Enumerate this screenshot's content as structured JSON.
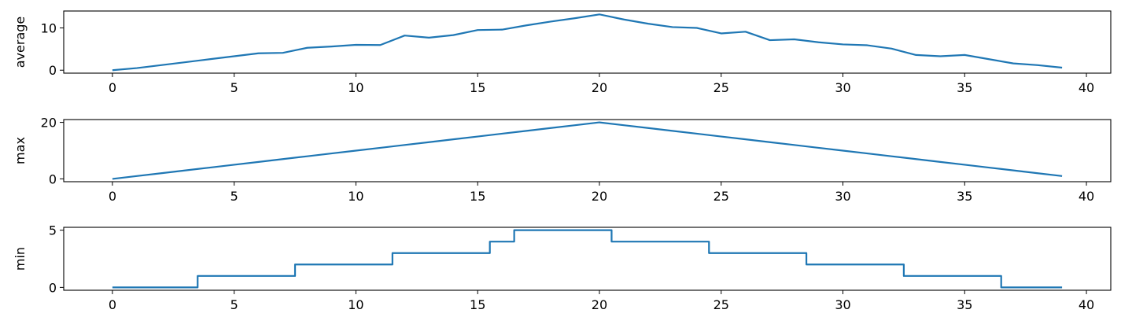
{
  "chart_data": [
    {
      "type": "line",
      "ylabel": "average",
      "xlim": [
        -2,
        41
      ],
      "ylim": [
        -0.7,
        14
      ],
      "xticks": [
        0,
        5,
        10,
        15,
        20,
        25,
        30,
        35,
        40
      ],
      "yticks": [
        0,
        10
      ],
      "color": "#1f77b4",
      "x": [
        0,
        1,
        2,
        3,
        4,
        5,
        6,
        7,
        8,
        9,
        10,
        11,
        12,
        13,
        14,
        15,
        16,
        17,
        18,
        19,
        20,
        21,
        22,
        23,
        24,
        25,
        26,
        27,
        28,
        29,
        30,
        31,
        32,
        33,
        34,
        35,
        36,
        37,
        38,
        39
      ],
      "y": [
        0,
        0.5,
        1.2,
        1.9,
        2.6,
        3.3,
        4.0,
        4.1,
        5.3,
        5.6,
        6.0,
        5.95,
        8.2,
        7.7,
        8.3,
        9.5,
        9.6,
        10.6,
        11.5,
        12.3,
        13.2,
        12.0,
        11.0,
        10.2,
        10.0,
        8.7,
        9.1,
        7.1,
        7.3,
        6.6,
        6.1,
        5.9,
        5.1,
        3.6,
        3.3,
        3.6,
        2.6,
        1.6,
        1.2,
        0.6
      ]
    },
    {
      "type": "line",
      "ylabel": "max",
      "xlim": [
        -2,
        41
      ],
      "ylim": [
        -1,
        21
      ],
      "xticks": [
        0,
        5,
        10,
        15,
        20,
        25,
        30,
        35,
        40
      ],
      "yticks": [
        0,
        20
      ],
      "color": "#1f77b4",
      "x": [
        0,
        1,
        2,
        3,
        4,
        5,
        6,
        7,
        8,
        9,
        10,
        11,
        12,
        13,
        14,
        15,
        16,
        17,
        18,
        19,
        20,
        21,
        22,
        23,
        24,
        25,
        26,
        27,
        28,
        29,
        30,
        31,
        32,
        33,
        34,
        35,
        36,
        37,
        38,
        39
      ],
      "y": [
        0,
        1,
        2,
        3,
        4,
        5,
        6,
        7,
        8,
        9,
        10,
        11,
        12,
        13,
        14,
        15,
        16,
        17,
        18,
        19,
        20,
        19,
        18,
        17,
        16,
        15,
        14,
        13,
        12,
        11,
        10,
        9,
        8,
        7,
        6,
        5,
        4,
        3,
        2,
        1
      ]
    },
    {
      "type": "line",
      "ylabel": "min",
      "step": "mid",
      "xlim": [
        -2,
        41
      ],
      "ylim": [
        -0.25,
        5.25
      ],
      "xticks": [
        0,
        5,
        10,
        15,
        20,
        25,
        30,
        35,
        40
      ],
      "yticks": [
        0,
        5
      ],
      "color": "#1f77b4",
      "x": [
        0,
        1,
        2,
        3,
        4,
        5,
        6,
        7,
        8,
        9,
        10,
        11,
        12,
        13,
        14,
        15,
        16,
        17,
        18,
        19,
        20,
        21,
        22,
        23,
        24,
        25,
        26,
        27,
        28,
        29,
        30,
        31,
        32,
        33,
        34,
        35,
        36,
        37,
        38,
        39
      ],
      "y": [
        0,
        0,
        0,
        0,
        1,
        1,
        1,
        1,
        2,
        2,
        2,
        2,
        3,
        3,
        3,
        3,
        4,
        5,
        5,
        5,
        5,
        4,
        4,
        4,
        4,
        3,
        3,
        3,
        3,
        2,
        2,
        2,
        2,
        1,
        1,
        1,
        1,
        0,
        0,
        0
      ]
    }
  ]
}
